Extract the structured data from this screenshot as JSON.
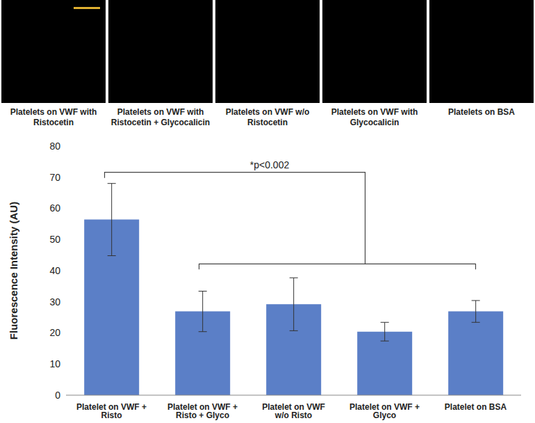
{
  "panels": [
    {
      "caption": "Platelets on VWF with Ristocetin"
    },
    {
      "caption": "Platelets on VWF with Ristocetin + Glycocalicin"
    },
    {
      "caption": "Platelets on VWF w/o Ristocetin"
    },
    {
      "caption": "Platelets on VWF with Glycocalicin"
    },
    {
      "caption": "Platelets on BSA"
    }
  ],
  "chart_data": {
    "type": "bar",
    "y_label": "Fluorescence Intensity (AU)",
    "annotation": "*p<0.002",
    "categories": [
      "Platelet on VWF + Risto",
      "Platelet on VWF + Risto + Glyco",
      "Platelet on VWF w/o Risto",
      "Platelet on VWF + Glyco",
      "Platelet on BSA"
    ],
    "values": [
      56.4,
      26.9,
      29.2,
      20.4,
      26.9
    ],
    "errors": [
      11.6,
      6.5,
      8.5,
      3.0,
      3.5
    ],
    "color": "#5b7fc7",
    "ylim": [
      0,
      80
    ],
    "yticks": [
      0,
      10,
      20,
      30,
      40,
      50,
      60,
      70,
      80
    ],
    "grid": false
  }
}
